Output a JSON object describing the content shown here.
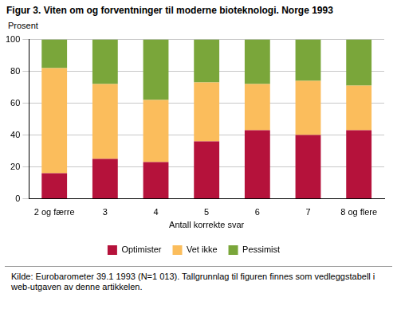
{
  "chart_data": {
    "type": "bar",
    "title": "Figur 3. Viten om og forventninger til moderne bioteknologi. Norge 1993",
    "y_label": "Prosent",
    "x_label": "Antall korrekte svar",
    "categories": [
      "2 og færre",
      "3",
      "4",
      "5",
      "6",
      "7",
      "8 og flere"
    ],
    "series": [
      {
        "name": "Optimister",
        "color": "#b5123b",
        "values": [
          16,
          25,
          23,
          36,
          43,
          40,
          43
        ]
      },
      {
        "name": "Vet ikke",
        "color": "#fbbd5c",
        "values": [
          66,
          47,
          39,
          37,
          29,
          34,
          28
        ]
      },
      {
        "name": "Pessimist",
        "color": "#7aa63a",
        "values": [
          18,
          28,
          38,
          27,
          28,
          26,
          29
        ]
      }
    ],
    "stacked": true,
    "ylim": [
      0,
      100
    ],
    "yticks": [
      0,
      20,
      40,
      60,
      80,
      100
    ],
    "grid": true,
    "legend": "bottom",
    "annotations": [
      "Kilde: Eurobarometer 39.1 1993 (N=1 013). Tallgrunnlag til figuren finnes som vedleggstabell i web-utgaven av denne artikkelen."
    ]
  }
}
